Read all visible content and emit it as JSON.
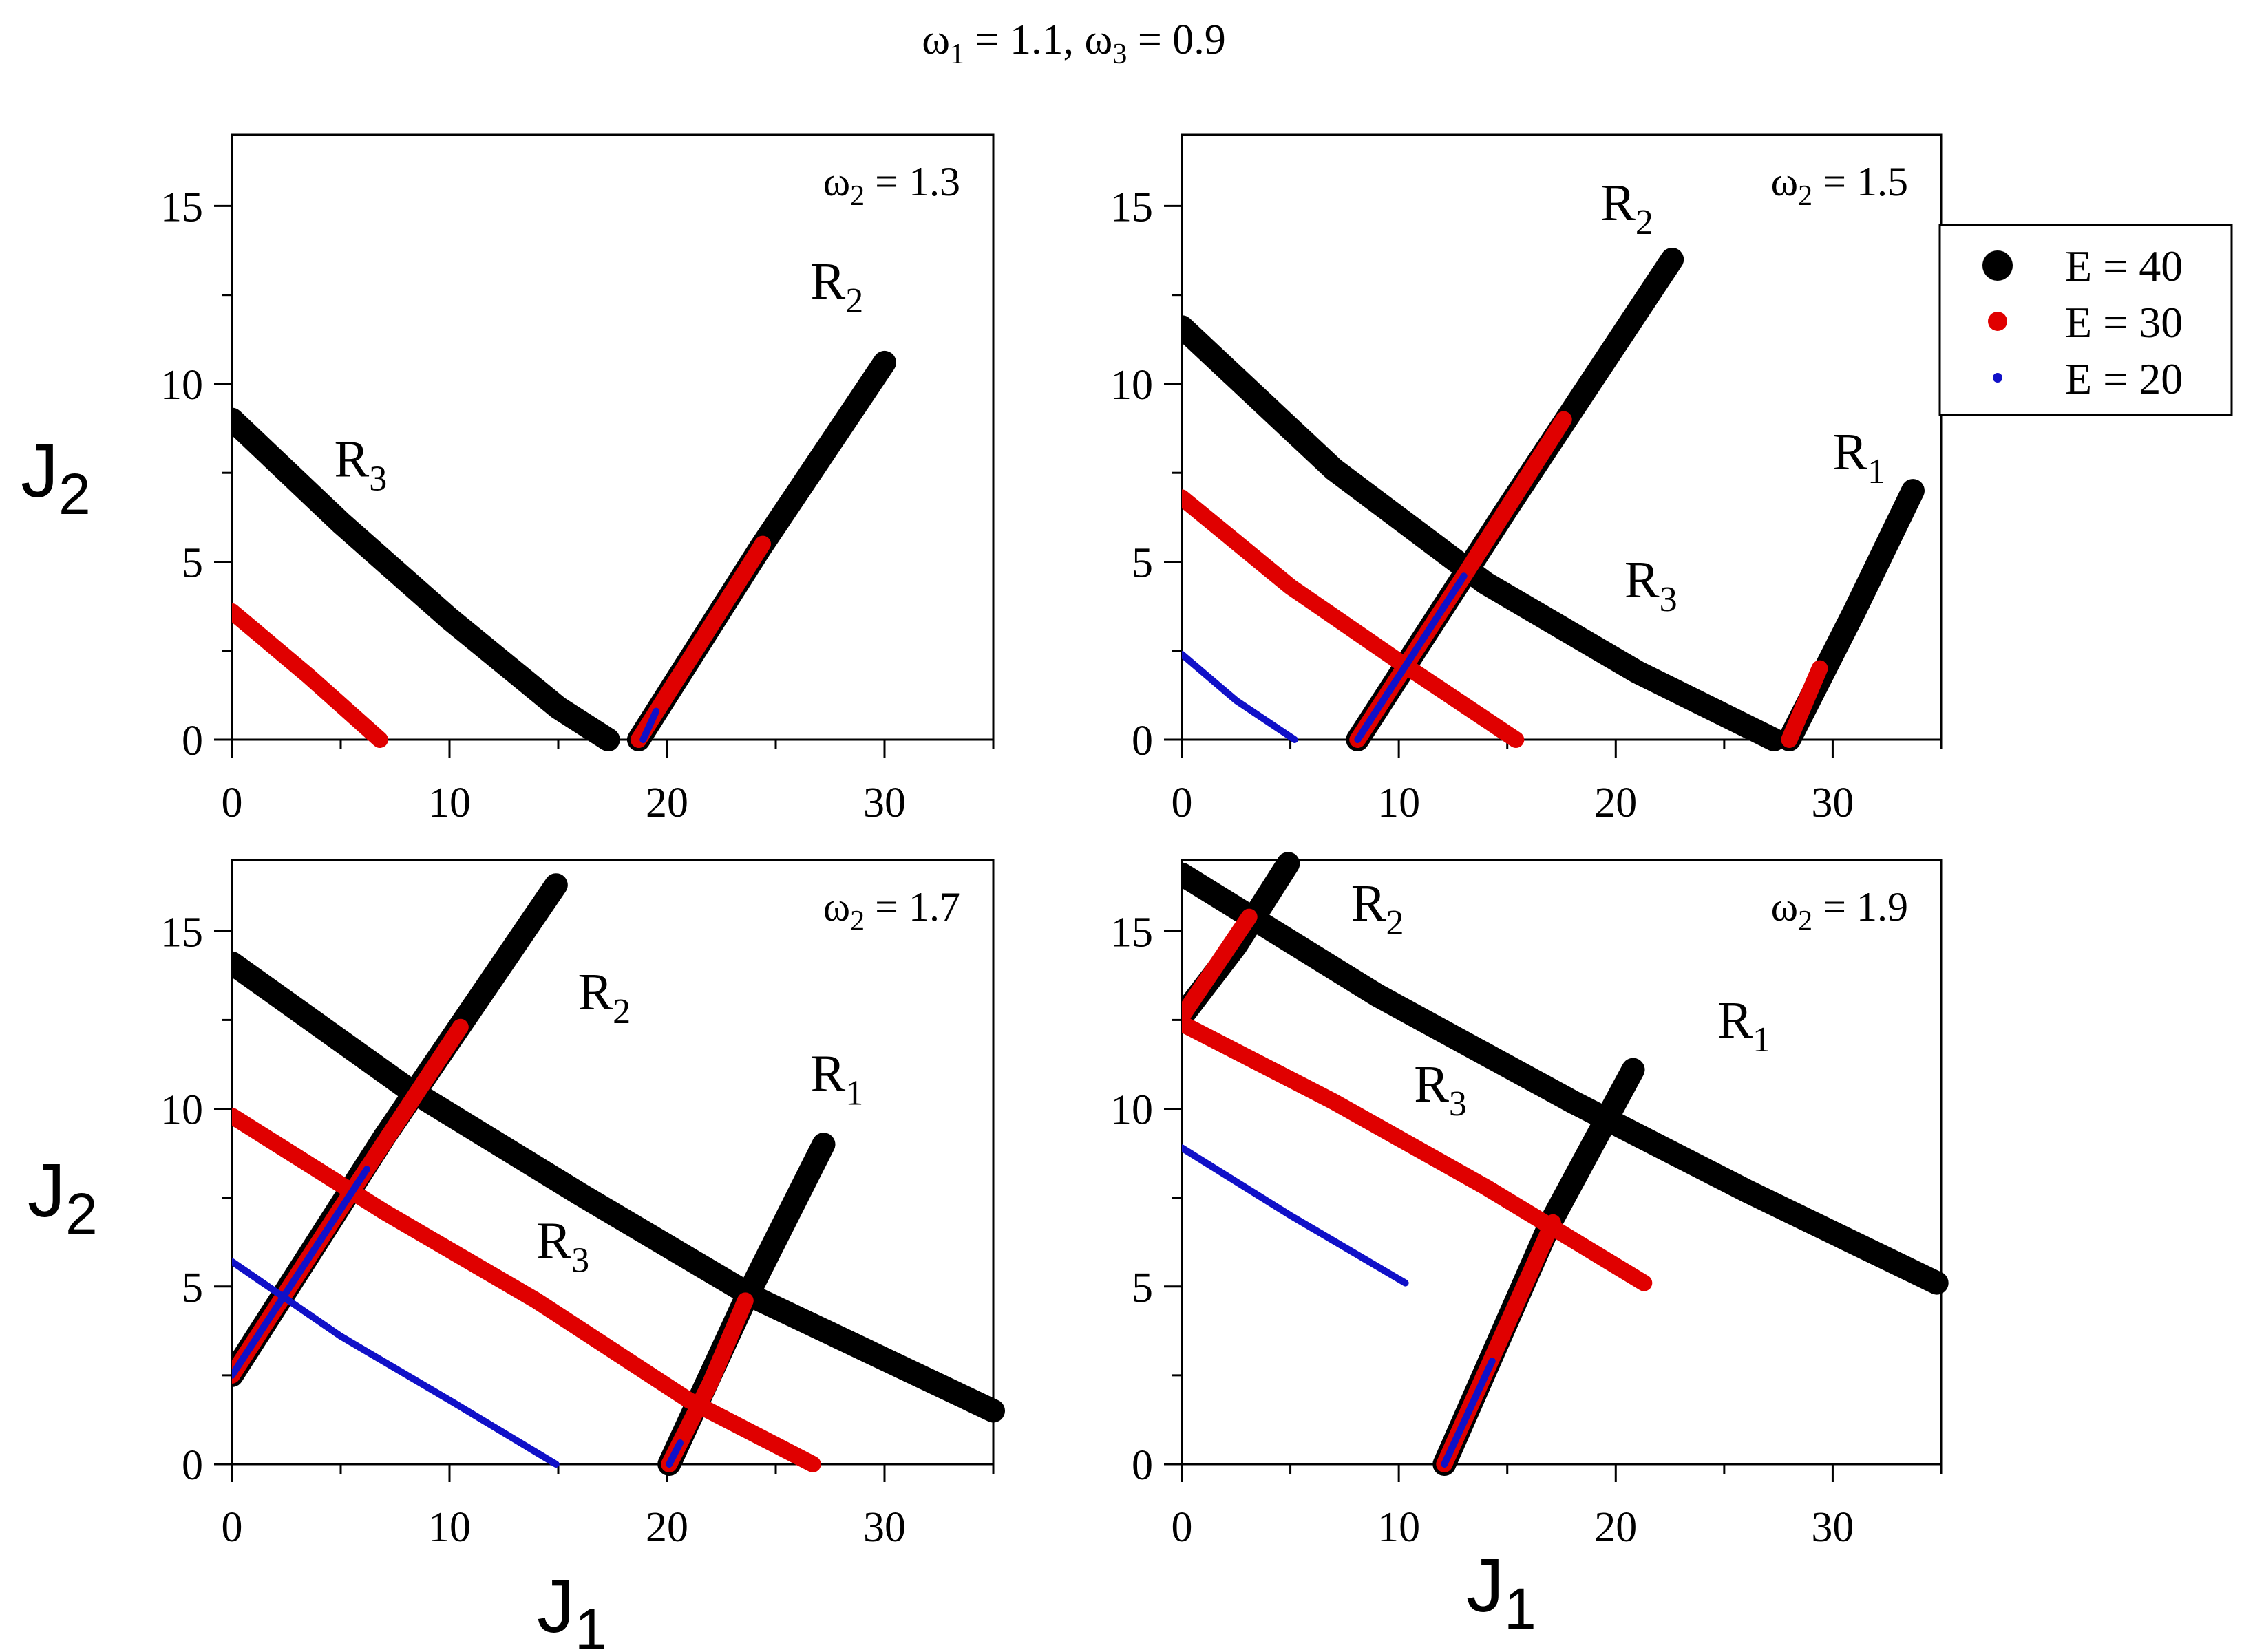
{
  "title": {
    "pre": "ω",
    "sub1": "1",
    "mid": " = 1.1,  ω",
    "sub2": "3",
    "post": " = 0.9"
  },
  "axis_labels": {
    "x_main": "J",
    "x_sub": "1",
    "y_main": "J",
    "y_sub": "2"
  },
  "legend": [
    {
      "label": "E = 40",
      "color": "#000000",
      "marker": "large-dot"
    },
    {
      "label": "E = 30",
      "color": "#e00000",
      "marker": "medium-dot"
    },
    {
      "label": "E = 20",
      "color": "#1010c8",
      "marker": "small-dot"
    }
  ],
  "chart_data": [
    {
      "type": "line",
      "omega_label": {
        "pre": "ω",
        "sub": "2",
        "post": " = 1.3"
      },
      "xlim": [
        0,
        35
      ],
      "ylim": [
        0,
        17
      ],
      "xticks": [
        "0",
        "10",
        "20",
        "30"
      ],
      "yticks": [
        "0",
        "5",
        "10",
        "15"
      ],
      "series": [
        {
          "energy": 40,
          "color": "#000000",
          "lines": [
            {
              "resonance": "R3",
              "points": [
                [
                  0,
                  9.0
                ],
                [
                  5,
                  6.1
                ],
                [
                  10,
                  3.4
                ],
                [
                  15,
                  0.9
                ],
                [
                  17.3,
                  0
                ]
              ]
            },
            {
              "resonance": "R2",
              "points": [
                [
                  18.7,
                  0
                ],
                [
                  24.3,
                  5.4
                ],
                [
                  30,
                  10.6
                ]
              ]
            }
          ]
        },
        {
          "energy": 30,
          "color": "#e00000",
          "lines": [
            {
              "resonance": "R3",
              "points": [
                [
                  0,
                  3.6
                ],
                [
                  3.5,
                  1.8
                ],
                [
                  6.8,
                  0
                ]
              ]
            },
            {
              "resonance": "R2",
              "points": [
                [
                  18.7,
                  0
                ],
                [
                  21.5,
                  2.7
                ],
                [
                  24.4,
                  5.5
                ]
              ]
            }
          ]
        },
        {
          "energy": 20,
          "color": "#1010c8",
          "lines": [
            {
              "resonance": "R2",
              "points": [
                [
                  18.9,
                  0
                ],
                [
                  19.5,
                  0.8
                ]
              ]
            }
          ]
        }
      ],
      "annotations": [
        {
          "text": "R",
          "sub": "3",
          "x": 4.7,
          "y": 7.4
        },
        {
          "text": "R",
          "sub": "2",
          "x": 26.6,
          "y": 12.4
        }
      ]
    },
    {
      "type": "line",
      "omega_label": {
        "pre": "ω",
        "sub": "2",
        "post": " = 1.5"
      },
      "xlim": [
        0,
        35
      ],
      "ylim": [
        0,
        17
      ],
      "xticks": [
        "0",
        "10",
        "20",
        "30"
      ],
      "yticks": [
        "0",
        "5",
        "10",
        "15"
      ],
      "series": [
        {
          "energy": 40,
          "color": "#000000",
          "lines": [
            {
              "resonance": "R3",
              "points": [
                [
                  0,
                  11.6
                ],
                [
                  7,
                  7.6
                ],
                [
                  14,
                  4.4
                ],
                [
                  21,
                  1.9
                ],
                [
                  27.3,
                  0
                ]
              ]
            },
            {
              "resonance": "R2",
              "points": [
                [
                  8.1,
                  0
                ],
                [
                  15,
                  6.5
                ],
                [
                  22.6,
                  13.5
                ]
              ]
            },
            {
              "resonance": "R1",
              "points": [
                [
                  28.0,
                  0
                ],
                [
                  31,
                  3.6
                ],
                [
                  33.7,
                  7.0
                ]
              ]
            }
          ]
        },
        {
          "energy": 30,
          "color": "#e00000",
          "lines": [
            {
              "resonance": "R3",
              "points": [
                [
                  0,
                  6.8
                ],
                [
                  5,
                  4.3
                ],
                [
                  10,
                  2.2
                ],
                [
                  15.4,
                  0
                ]
              ]
            },
            {
              "resonance": "R2",
              "points": [
                [
                  8.1,
                  0
                ],
                [
                  13,
                  4.6
                ],
                [
                  17.6,
                  9.0
                ]
              ]
            },
            {
              "resonance": "R1",
              "points": [
                [
                  28.0,
                  0
                ],
                [
                  29.4,
                  2.0
                ]
              ]
            }
          ]
        },
        {
          "energy": 20,
          "color": "#1010c8",
          "lines": [
            {
              "resonance": "R3",
              "points": [
                [
                  0,
                  2.4
                ],
                [
                  2.5,
                  1.1
                ],
                [
                  5.2,
                  0
                ]
              ]
            },
            {
              "resonance": "R2",
              "points": [
                [
                  8.1,
                  0
                ],
                [
                  13.0,
                  4.6
                ]
              ]
            }
          ]
        }
      ],
      "annotations": [
        {
          "text": "R",
          "sub": "2",
          "x": 19.3,
          "y": 14.6
        },
        {
          "text": "R",
          "sub": "1",
          "x": 30.0,
          "y": 7.6
        },
        {
          "text": "R",
          "sub": "3",
          "x": 20.4,
          "y": 4.0
        }
      ]
    },
    {
      "type": "line",
      "omega_label": {
        "pre": "ω",
        "sub": "2",
        "post": " = 1.7"
      },
      "xlim": [
        0,
        35
      ],
      "ylim": [
        0,
        17
      ],
      "xticks": [
        "0",
        "10",
        "20",
        "30"
      ],
      "yticks": [
        "0",
        "5",
        "10",
        "15"
      ],
      "series": [
        {
          "energy": 40,
          "color": "#000000",
          "lines": [
            {
              "resonance": "R3",
              "points": [
                [
                  0,
                  14.1
                ],
                [
                  8,
                  10.6
                ],
                [
                  16,
                  7.6
                ],
                [
                  24,
                  4.7
                ],
                [
                  35,
                  1.5
                ]
              ]
            },
            {
              "resonance": "R2",
              "points": [
                [
                  0,
                  2.5
                ],
                [
                  7,
                  9.2
                ],
                [
                  14.9,
                  16.3
                ]
              ]
            },
            {
              "resonance": "R1",
              "points": [
                [
                  20.1,
                  0
                ],
                [
                  23.5,
                  4.5
                ],
                [
                  27.2,
                  9.0
                ]
              ]
            }
          ]
        },
        {
          "energy": 30,
          "color": "#e00000",
          "lines": [
            {
              "resonance": "R3",
              "points": [
                [
                  0,
                  9.8
                ],
                [
                  7,
                  7.1
                ],
                [
                  14,
                  4.6
                ],
                [
                  21,
                  1.8
                ],
                [
                  26.7,
                  0
                ]
              ]
            },
            {
              "resonance": "R2",
              "points": [
                [
                  0,
                  2.5
                ],
                [
                  5,
                  7.2
                ],
                [
                  10.5,
                  12.3
                ]
              ]
            },
            {
              "resonance": "R1",
              "points": [
                [
                  20.1,
                  0
                ],
                [
                  22,
                  2.3
                ],
                [
                  23.6,
                  4.6
                ]
              ]
            }
          ]
        },
        {
          "energy": 20,
          "color": "#1010c8",
          "lines": [
            {
              "resonance": "R3",
              "points": [
                [
                  0,
                  5.7
                ],
                [
                  5,
                  3.6
                ],
                [
                  10,
                  1.8
                ],
                [
                  14.9,
                  0
                ]
              ]
            },
            {
              "resonance": "R2",
              "points": [
                [
                  0,
                  2.5
                ],
                [
                  6.2,
                  8.3
                ]
              ]
            },
            {
              "resonance": "R1",
              "points": [
                [
                  20.1,
                  0
                ],
                [
                  20.6,
                  0.6
                ]
              ]
            }
          ]
        }
      ],
      "annotations": [
        {
          "text": "R",
          "sub": "2",
          "x": 15.9,
          "y": 12.8
        },
        {
          "text": "R",
          "sub": "1",
          "x": 26.6,
          "y": 10.5
        },
        {
          "text": "R",
          "sub": "3",
          "x": 14.0,
          "y": 5.8
        }
      ]
    },
    {
      "type": "line",
      "omega_label": {
        "pre": "ω",
        "sub": "2",
        "post": " = 1.9"
      },
      "xlim": [
        0,
        35
      ],
      "ylim": [
        0,
        17
      ],
      "xticks": [
        "0",
        "10",
        "20",
        "30"
      ],
      "yticks": [
        "0",
        "5",
        "10",
        "15"
      ],
      "series": [
        {
          "energy": 40,
          "color": "#000000",
          "lines": [
            {
              "resonance": "R3",
              "points": [
                [
                  0,
                  16.6
                ],
                [
                  9,
                  13.2
                ],
                [
                  18,
                  10.2
                ],
                [
                  26,
                  7.7
                ],
                [
                  34.8,
                  5.1
                ]
              ]
            },
            {
              "resonance": "R2",
              "points": [
                [
                  0,
                  12.6
                ],
                [
                  2.5,
                  14.6
                ],
                [
                  4.9,
                  16.9
                ]
              ]
            },
            {
              "resonance": "R1",
              "points": [
                [
                  12.1,
                  0
                ],
                [
                  17,
                  6.8
                ],
                [
                  20.8,
                  11.1
                ]
              ]
            }
          ]
        },
        {
          "energy": 30,
          "color": "#e00000",
          "lines": [
            {
              "resonance": "R3",
              "points": [
                [
                  0,
                  12.4
                ],
                [
                  7,
                  10.2
                ],
                [
                  14,
                  7.8
                ],
                [
                  21.3,
                  5.1
                ]
              ]
            },
            {
              "resonance": "R2",
              "points": [
                [
                  0,
                  12.6
                ],
                [
                  3.1,
                  15.4
                ]
              ]
            },
            {
              "resonance": "R1",
              "points": [
                [
                  12.1,
                  0
                ],
                [
                  14.6,
                  3.4
                ],
                [
                  17.1,
                  6.8
                ]
              ]
            }
          ]
        },
        {
          "energy": 20,
          "color": "#1010c8",
          "lines": [
            {
              "resonance": "R3",
              "points": [
                [
                  0,
                  8.9
                ],
                [
                  5,
                  7.0
                ],
                [
                  10.3,
                  5.1
                ]
              ]
            },
            {
              "resonance": "R1",
              "points": [
                [
                  12.1,
                  0
                ],
                [
                  14.3,
                  2.9
                ]
              ]
            }
          ]
        }
      ],
      "annotations": [
        {
          "text": "R",
          "sub": "2",
          "x": 7.8,
          "y": 15.3
        },
        {
          "text": "R",
          "sub": "1",
          "x": 24.7,
          "y": 12.0
        },
        {
          "text": "R",
          "sub": "3",
          "x": 10.7,
          "y": 10.2
        }
      ]
    }
  ]
}
